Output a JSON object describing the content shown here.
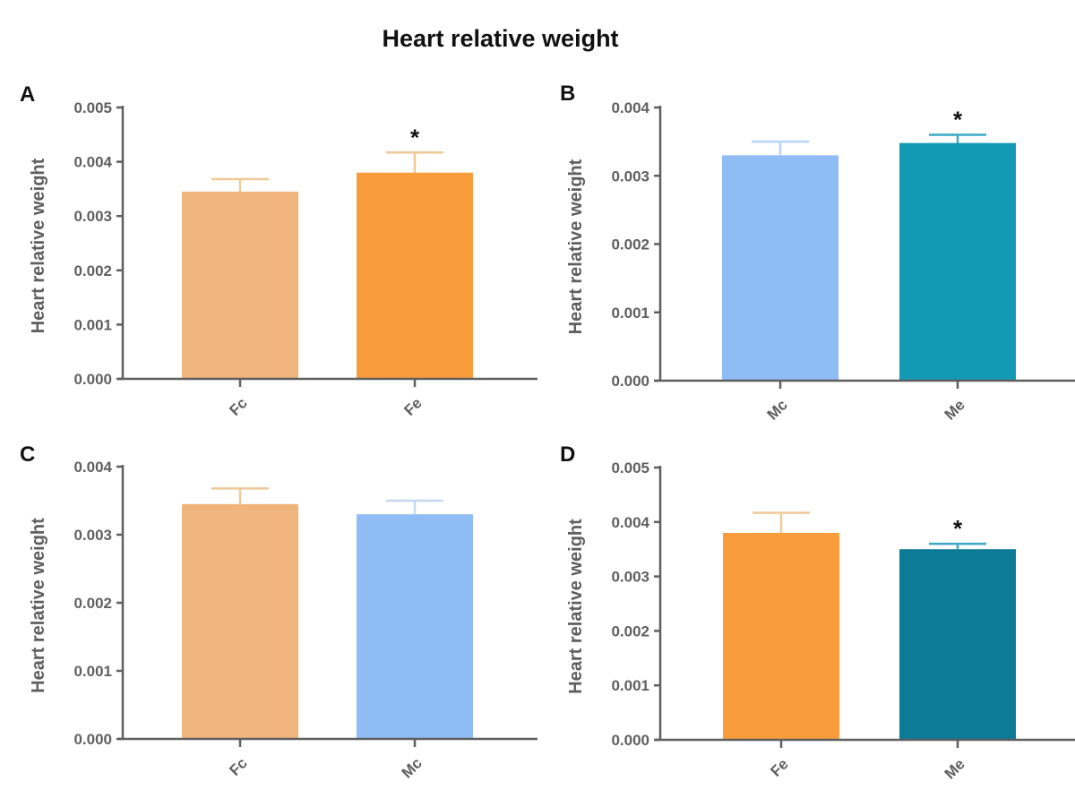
{
  "title": "Heart relative weight",
  "chart_data": [
    {
      "type": "bar",
      "panel": "A",
      "ylabel": "Heart relative weight",
      "xlabel": "",
      "ylim": [
        0,
        0.005
      ],
      "yticks": [
        "0.000",
        "0.001",
        "0.002",
        "0.003",
        "0.004",
        "0.005"
      ],
      "categories": [
        "Fc",
        "Fe"
      ],
      "values": [
        0.00345,
        0.0038
      ],
      "error_upper": [
        0.00368,
        0.00417
      ],
      "colors": [
        "#f0b57c",
        "#f89c3c"
      ],
      "error_colors": [
        "#f0c896",
        "#f0c896"
      ],
      "significance": [
        "",
        "*"
      ]
    },
    {
      "type": "bar",
      "panel": "B",
      "ylabel": "Heart relative weight",
      "xlabel": "",
      "ylim": [
        0,
        0.004
      ],
      "yticks": [
        "0.000",
        "0.001",
        "0.002",
        "0.003",
        "0.004"
      ],
      "categories": [
        "Mc",
        "Me"
      ],
      "values": [
        0.0033,
        0.00348
      ],
      "error_upper": [
        0.0035,
        0.0036
      ],
      "colors": [
        "#8fbcf5",
        "#129ab4"
      ],
      "error_colors": [
        "#b7d3f5",
        "#3aa9c4"
      ],
      "significance": [
        "",
        "*"
      ]
    },
    {
      "type": "bar",
      "panel": "C",
      "ylabel": "Heart relative weight",
      "xlabel": "",
      "ylim": [
        0,
        0.004
      ],
      "yticks": [
        "0.000",
        "0.001",
        "0.002",
        "0.003",
        "0.004"
      ],
      "categories": [
        "Fc",
        "Mc"
      ],
      "values": [
        0.00345,
        0.0033
      ],
      "error_upper": [
        0.00368,
        0.0035
      ],
      "colors": [
        "#f0b57c",
        "#8fbcf5"
      ],
      "error_colors": [
        "#f0c896",
        "#c4d8f2"
      ],
      "significance": [
        "",
        ""
      ]
    },
    {
      "type": "bar",
      "panel": "D",
      "ylabel": "Heart relative weight",
      "xlabel": "",
      "ylim": [
        0,
        0.005
      ],
      "yticks": [
        "0.000",
        "0.001",
        "0.002",
        "0.003",
        "0.004",
        "0.005"
      ],
      "categories": [
        "Fe",
        "Me"
      ],
      "values": [
        0.0038,
        0.0035
      ],
      "error_upper": [
        0.00417,
        0.0036
      ],
      "colors": [
        "#f89c3c",
        "#0b7b96"
      ],
      "error_colors": [
        "#f0c896",
        "#3aa9c4"
      ],
      "significance": [
        "",
        "*"
      ]
    }
  ]
}
